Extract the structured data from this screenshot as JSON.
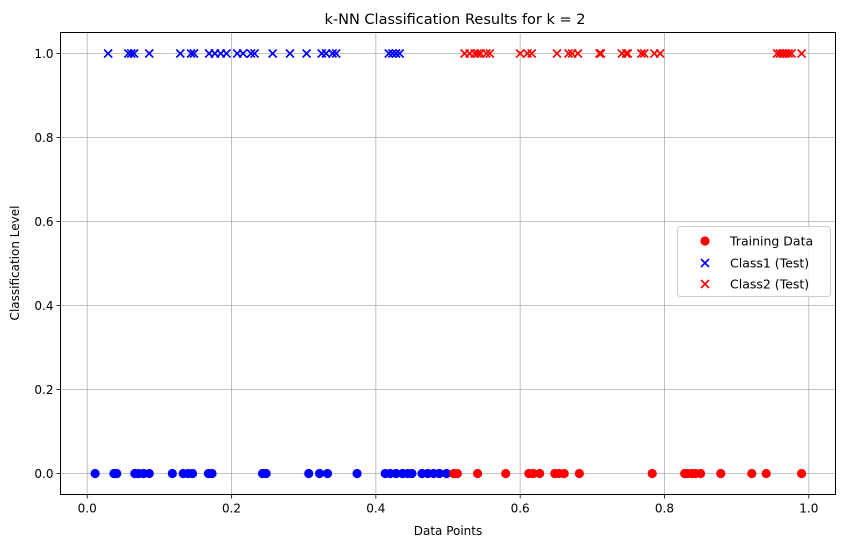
{
  "chart_data": {
    "type": "scatter",
    "title": "k-NN Classification Results for k = 2",
    "xlabel": "Data Points",
    "ylabel": "Classification Level",
    "xlim": [
      -0.037,
      1.037
    ],
    "ylim": [
      -0.05,
      1.05
    ],
    "xticks": [
      0.0,
      0.2,
      0.4,
      0.6,
      0.8,
      1.0
    ],
    "xtick_labels": [
      "0.0",
      "0.2",
      "0.4",
      "0.6",
      "0.8",
      "1.0"
    ],
    "yticks": [
      0.0,
      0.2,
      0.4,
      0.6,
      0.8,
      1.0
    ],
    "ytick_labels": [
      "0.0",
      "0.2",
      "0.4",
      "0.6",
      "0.8",
      "1.0"
    ],
    "grid": true,
    "legend_position": "center-right",
    "colors": {
      "class1": "#0000ff",
      "class2": "#ff0000",
      "grid": "#b0b0b0"
    },
    "series": [
      {
        "name": "Training Data",
        "marker": "circle",
        "y": 0,
        "points": [
          {
            "x": 0.011,
            "c": "#0000ff"
          },
          {
            "x": 0.037,
            "c": "#0000ff"
          },
          {
            "x": 0.041,
            "c": "#0000ff"
          },
          {
            "x": 0.066,
            "c": "#0000ff"
          },
          {
            "x": 0.071,
            "c": "#0000ff"
          },
          {
            "x": 0.078,
            "c": "#0000ff"
          },
          {
            "x": 0.086,
            "c": "#0000ff"
          },
          {
            "x": 0.118,
            "c": "#0000ff"
          },
          {
            "x": 0.133,
            "c": "#0000ff"
          },
          {
            "x": 0.14,
            "c": "#0000ff"
          },
          {
            "x": 0.146,
            "c": "#0000ff"
          },
          {
            "x": 0.168,
            "c": "#0000ff"
          },
          {
            "x": 0.173,
            "c": "#0000ff"
          },
          {
            "x": 0.243,
            "c": "#0000ff"
          },
          {
            "x": 0.248,
            "c": "#0000ff"
          },
          {
            "x": 0.307,
            "c": "#0000ff"
          },
          {
            "x": 0.322,
            "c": "#0000ff"
          },
          {
            "x": 0.333,
            "c": "#0000ff"
          },
          {
            "x": 0.374,
            "c": "#0000ff"
          },
          {
            "x": 0.413,
            "c": "#0000ff"
          },
          {
            "x": 0.42,
            "c": "#0000ff"
          },
          {
            "x": 0.428,
            "c": "#0000ff"
          },
          {
            "x": 0.437,
            "c": "#0000ff"
          },
          {
            "x": 0.444,
            "c": "#0000ff"
          },
          {
            "x": 0.45,
            "c": "#0000ff"
          },
          {
            "x": 0.464,
            "c": "#0000ff"
          },
          {
            "x": 0.472,
            "c": "#0000ff"
          },
          {
            "x": 0.48,
            "c": "#0000ff"
          },
          {
            "x": 0.488,
            "c": "#0000ff"
          },
          {
            "x": 0.498,
            "c": "#0000ff"
          },
          {
            "x": 0.508,
            "c": "#ff0000"
          },
          {
            "x": 0.513,
            "c": "#ff0000"
          },
          {
            "x": 0.541,
            "c": "#ff0000"
          },
          {
            "x": 0.58,
            "c": "#ff0000"
          },
          {
            "x": 0.612,
            "c": "#ff0000"
          },
          {
            "x": 0.618,
            "c": "#ff0000"
          },
          {
            "x": 0.627,
            "c": "#ff0000"
          },
          {
            "x": 0.648,
            "c": "#ff0000"
          },
          {
            "x": 0.654,
            "c": "#ff0000"
          },
          {
            "x": 0.661,
            "c": "#ff0000"
          },
          {
            "x": 0.682,
            "c": "#ff0000"
          },
          {
            "x": 0.783,
            "c": "#ff0000"
          },
          {
            "x": 0.828,
            "c": "#ff0000"
          },
          {
            "x": 0.832,
            "c": "#ff0000"
          },
          {
            "x": 0.838,
            "c": "#ff0000"
          },
          {
            "x": 0.843,
            "c": "#ff0000"
          },
          {
            "x": 0.85,
            "c": "#ff0000"
          },
          {
            "x": 0.878,
            "c": "#ff0000"
          },
          {
            "x": 0.921,
            "c": "#ff0000"
          },
          {
            "x": 0.941,
            "c": "#ff0000"
          },
          {
            "x": 0.99,
            "c": "#ff0000"
          }
        ]
      },
      {
        "name": "Class1 (Test)",
        "marker": "x",
        "color": "#0000ff",
        "y": 1,
        "x": [
          0.029,
          0.057,
          0.061,
          0.065,
          0.086,
          0.129,
          0.144,
          0.148,
          0.169,
          0.177,
          0.185,
          0.193,
          0.208,
          0.216,
          0.227,
          0.232,
          0.257,
          0.281,
          0.304,
          0.325,
          0.331,
          0.34,
          0.345,
          0.418,
          0.423,
          0.428,
          0.433
        ]
      },
      {
        "name": "Class2 (Test)",
        "marker": "x",
        "color": "#ff0000",
        "y": 1,
        "x": [
          0.523,
          0.53,
          0.537,
          0.541,
          0.545,
          0.553,
          0.558,
          0.6,
          0.61,
          0.616,
          0.651,
          0.667,
          0.672,
          0.68,
          0.71,
          0.712,
          0.741,
          0.747,
          0.749,
          0.768,
          0.772,
          0.786,
          0.794,
          0.956,
          0.96,
          0.964,
          0.968,
          0.972,
          0.976,
          0.99
        ]
      }
    ]
  }
}
